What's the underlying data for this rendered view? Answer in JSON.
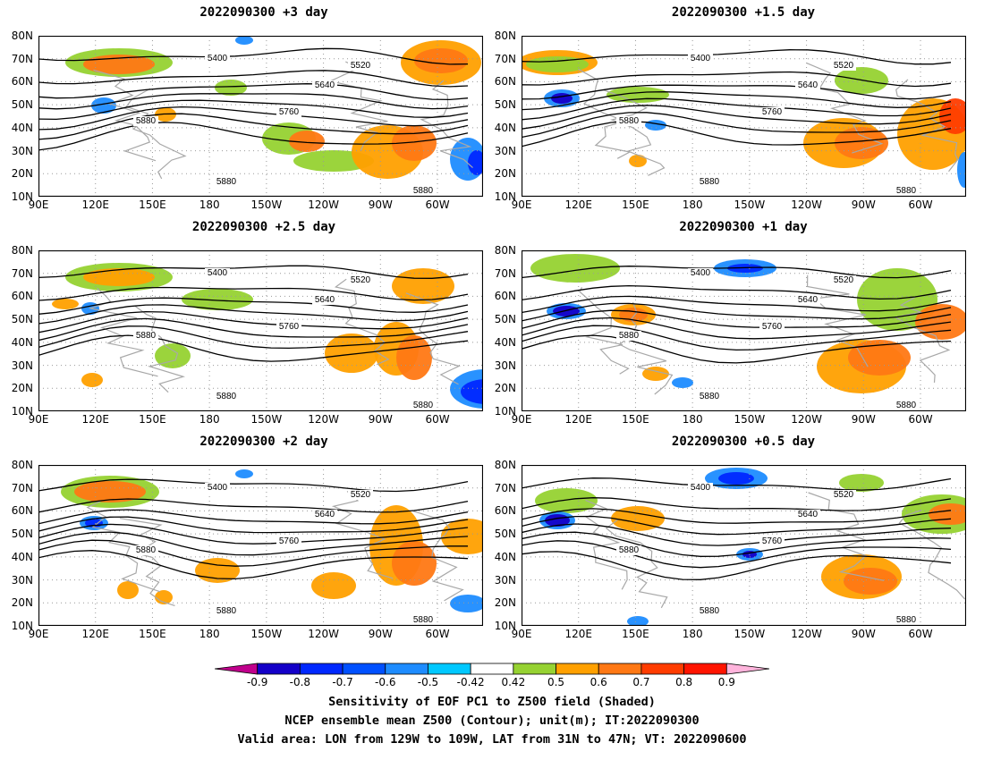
{
  "panels": [
    {
      "title": "2022090300 +3 day"
    },
    {
      "title": "2022090300 +1.5 day"
    },
    {
      "title": "2022090300 +2.5 day"
    },
    {
      "title": "2022090300 +1 day"
    },
    {
      "title": "2022090300 +2 day"
    },
    {
      "title": "2022090300 +0.5 day"
    }
  ],
  "axes": {
    "lat_ticks": [
      "80N",
      "70N",
      "60N",
      "50N",
      "40N",
      "30N",
      "20N",
      "10N"
    ],
    "lon_ticks": [
      "90E",
      "120E",
      "150E",
      "180",
      "150W",
      "120W",
      "90W",
      "60W"
    ]
  },
  "contour_labels": [
    "5400",
    "5520",
    "5640",
    "5760",
    "5880"
  ],
  "colorbar": {
    "labels": [
      "-0.9",
      "-0.8",
      "-0.7",
      "-0.6",
      "-0.5",
      "-0.42",
      "0.42",
      "0.5",
      "0.6",
      "0.7",
      "0.8",
      "0.9"
    ],
    "colors": [
      "#c0008c",
      "#1400c8",
      "#0028ff",
      "#0050ff",
      "#1e8cff",
      "#00c8ff",
      "#ffffff",
      "#96d232",
      "#ffa000",
      "#ff7814",
      "#ff3c00",
      "#ff1400",
      "#ffb4dc"
    ]
  },
  "caption": {
    "line1": "Sensitivity of EOF PC1 to Z500 field (Shaded)",
    "line2": "NCEP ensemble mean Z500 (Contour); unit(m); IT:2022090300",
    "line3": "Valid area: LON from 129W to 109W, LAT from 31N to 47N; VT: 2022090600"
  }
}
